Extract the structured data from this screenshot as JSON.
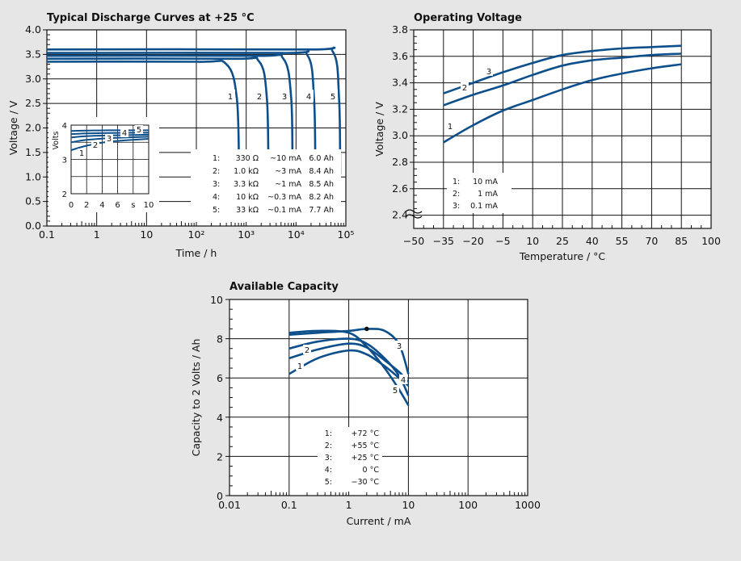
{
  "colors": {
    "curve": "#0d4f8b",
    "grid": "#111111",
    "background": "#e6e6e6",
    "plot": "#ffffff"
  },
  "chart_data": [
    {
      "type": "line",
      "title": "Typical Discharge Curves at +25 °C",
      "xlabel": "Time / h",
      "ylabel": "Voltage / V",
      "x_scale": "log",
      "xlim": [
        0.1,
        100000
      ],
      "ylim": [
        0,
        4
      ],
      "x_tick_labels": [
        "0.1",
        "1",
        "10",
        "10²",
        "10³",
        "10⁴",
        "10⁵"
      ],
      "y_tick_labels": [
        "0.0",
        "0.5",
        "1.0",
        "1.5",
        "2.0",
        "2.5",
        "3.0",
        "3.5",
        "4.0"
      ],
      "grid": true,
      "series": [
        {
          "name": "1",
          "load": "330 Ω",
          "current": "~10 mA",
          "capacity": "6.0 Ah",
          "x": [
            0.1,
            100,
            400,
            650,
            720
          ],
          "y": [
            3.35,
            3.35,
            3.3,
            2.6,
            1.05
          ]
        },
        {
          "name": "2",
          "load": "1.0 kΩ",
          "current": "~3 mA",
          "capacity": "8.4 Ah",
          "x": [
            0.1,
            500,
            1800,
            2600,
            2800
          ],
          "y": [
            3.41,
            3.41,
            3.36,
            2.6,
            1.05
          ]
        },
        {
          "name": "3",
          "load": "3.3 kΩ",
          "current": "~1 mA",
          "capacity": "8.5 Ah",
          "x": [
            0.1,
            1500,
            5500,
            8000,
            8500
          ],
          "y": [
            3.47,
            3.47,
            3.42,
            2.6,
            1.05
          ]
        },
        {
          "name": "4",
          "load": "10 kΩ",
          "current": "~0.3 mA",
          "capacity": "8.2 Ah",
          "x": [
            0.1,
            5000,
            17000,
            23000,
            24500
          ],
          "y": [
            3.53,
            3.53,
            3.48,
            2.6,
            1.05
          ]
        },
        {
          "name": "5",
          "load": "33 kΩ",
          "current": "~0.1 mA",
          "capacity": "7.7 Ah",
          "x": [
            0.1,
            15000,
            55000,
            73000,
            77000
          ],
          "y": [
            3.6,
            3.6,
            3.55,
            2.6,
            1.05
          ]
        }
      ],
      "curve_labels": [
        "1",
        "2",
        "3",
        "4",
        "5"
      ],
      "legend_rows": [
        [
          "1:",
          "330 Ω",
          "~10 mA",
          "6.0 Ah"
        ],
        [
          "2:",
          "1.0 kΩ",
          "~3 mA",
          "8.4 Ah"
        ],
        [
          "3:",
          "3.3 kΩ",
          "~1 mA",
          "8.5 Ah"
        ],
        [
          "4:",
          "10 kΩ",
          "~0.3 mA",
          "8.2 Ah"
        ],
        [
          "5:",
          "33 kΩ",
          "~0.1 mA",
          "7.7 Ah"
        ]
      ],
      "inset": {
        "ylabel": "Volts",
        "xlabel": "s",
        "xlim": [
          0,
          10
        ],
        "ylim": [
          2,
          4
        ],
        "x_tick_labels": [
          "0",
          "2",
          "4",
          "6",
          "s",
          "10"
        ],
        "y_tick_labels": [
          "4",
          "3",
          "2"
        ],
        "series": [
          {
            "name": "1",
            "x": [
              0,
              2,
              5,
              10
            ],
            "y": [
              3.27,
              3.4,
              3.52,
              3.6
            ]
          },
          {
            "name": "2",
            "x": [
              0,
              2,
              5,
              10
            ],
            "y": [
              3.5,
              3.57,
              3.62,
              3.66
            ]
          },
          {
            "name": "3",
            "x": [
              0,
              2,
              5,
              10
            ],
            "y": [
              3.64,
              3.68,
              3.7,
              3.72
            ]
          },
          {
            "name": "4",
            "x": [
              0,
              2,
              5,
              10
            ],
            "y": [
              3.74,
              3.76,
              3.77,
              3.78
            ]
          },
          {
            "name": "5",
            "x": [
              0,
              2,
              5,
              10
            ],
            "y": [
              3.83,
              3.84,
              3.85,
              3.85
            ]
          }
        ]
      }
    },
    {
      "type": "line",
      "title": "Operating Voltage",
      "xlabel": "Temperature / °C",
      "ylabel": "Voltage / V",
      "xlim": [
        -50,
        100
      ],
      "ylim": [
        2.3,
        3.8
      ],
      "x_tick_labels": [
        "−50",
        "−35",
        "−20",
        "−5",
        "10",
        "25",
        "40",
        "55",
        "70",
        "85",
        "100"
      ],
      "y_tick_labels": [
        "2.4",
        "2.6",
        "2.8",
        "3.0",
        "3.2",
        "3.4",
        "3.6",
        "3.8"
      ],
      "axis_break": true,
      "grid": true,
      "series": [
        {
          "name": "1",
          "x": [
            -35,
            -20,
            -5,
            10,
            25,
            40,
            55,
            70,
            85
          ],
          "y": [
            2.95,
            3.08,
            3.19,
            3.27,
            3.35,
            3.42,
            3.47,
            3.51,
            3.54
          ]
        },
        {
          "name": "2",
          "x": [
            -35,
            -20,
            -5,
            10,
            25,
            40,
            55,
            70,
            85
          ],
          "y": [
            3.23,
            3.31,
            3.38,
            3.46,
            3.53,
            3.57,
            3.59,
            3.61,
            3.62
          ]
        },
        {
          "name": "3",
          "x": [
            -35,
            -20,
            -5,
            10,
            25,
            40,
            55,
            70,
            85
          ],
          "y": [
            3.32,
            3.4,
            3.48,
            3.55,
            3.61,
            3.64,
            3.66,
            3.67,
            3.68
          ]
        }
      ],
      "curve_labels": [
        "1",
        "2",
        "3"
      ],
      "legend_rows": [
        [
          "1:",
          "10 mA"
        ],
        [
          "2:",
          "1 mA"
        ],
        [
          "3:",
          "0.1 mA"
        ]
      ]
    },
    {
      "type": "line",
      "title": "Available Capacity",
      "xlabel": "Current / mA",
      "ylabel": "Capacity to 2 Volts / Ah",
      "x_scale": "log",
      "xlim": [
        0.01,
        1000
      ],
      "ylim": [
        0,
        10
      ],
      "x_tick_labels": [
        "0.01",
        "0.1",
        "1",
        "10",
        "100",
        "1000"
      ],
      "y_tick_labels": [
        "0",
        "2",
        "4",
        "6",
        "8",
        "10"
      ],
      "grid": true,
      "series": [
        {
          "name": "1",
          "x": [
            0.1,
            0.3,
            1,
            2,
            4,
            7,
            10
          ],
          "y": [
            6.2,
            7.0,
            7.4,
            7.2,
            6.6,
            6.0,
            5.6
          ]
        },
        {
          "name": "2",
          "x": [
            0.1,
            0.3,
            1,
            2,
            4,
            7,
            10
          ],
          "y": [
            7.0,
            7.45,
            7.75,
            7.55,
            6.9,
            6.3,
            5.8
          ]
        },
        {
          "name": "3",
          "x": [
            0.1,
            0.3,
            1,
            2,
            4,
            7,
            10
          ],
          "y": [
            8.2,
            8.3,
            8.4,
            8.5,
            8.4,
            7.7,
            6.2
          ]
        },
        {
          "name": "4",
          "x": [
            0.1,
            0.3,
            1,
            2,
            4,
            7,
            10
          ],
          "y": [
            7.5,
            7.85,
            8.0,
            7.75,
            7.0,
            6.1,
            5.1
          ]
        },
        {
          "name": "5",
          "x": [
            0.1,
            0.3,
            1,
            2,
            4,
            7,
            10
          ],
          "y": [
            8.3,
            8.4,
            8.3,
            7.6,
            6.5,
            5.4,
            4.6
          ]
        }
      ],
      "marker": {
        "x": 2,
        "y": 8.5
      },
      "curve_labels": [
        "1",
        "2",
        "3",
        "4",
        "5"
      ],
      "legend_rows": [
        [
          "1:",
          "+72 °C"
        ],
        [
          "2:",
          "+55 °C"
        ],
        [
          "3:",
          "+25 °C"
        ],
        [
          "4:",
          "0 °C"
        ],
        [
          "5:",
          "−30 °C"
        ]
      ]
    }
  ]
}
